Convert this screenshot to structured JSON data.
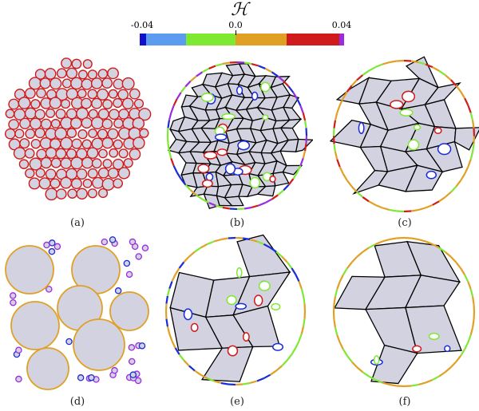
{
  "colorbar": {
    "title": "ℋ",
    "ticks": [
      "-0.04",
      "0.0",
      "0.04"
    ],
    "segments": [
      "#1010cc",
      "#5b9bf0",
      "#7fe833",
      "#e0a024",
      "#cf1b1b",
      "#9a2be0"
    ]
  },
  "panels": [
    {
      "label": "(a)"
    },
    {
      "label": "(b)"
    },
    {
      "label": "(c)"
    },
    {
      "label": "(d)"
    },
    {
      "label": "(e)"
    },
    {
      "label": "(f)"
    }
  ],
  "colors": {
    "cell_fill": "#d3d2e0",
    "edge": "#000000",
    "orange": "#e0a024",
    "red": "#cf1b1b",
    "green": "#7fe833",
    "blue": "#1a2bd9",
    "purple": "#9a2be0"
  }
}
